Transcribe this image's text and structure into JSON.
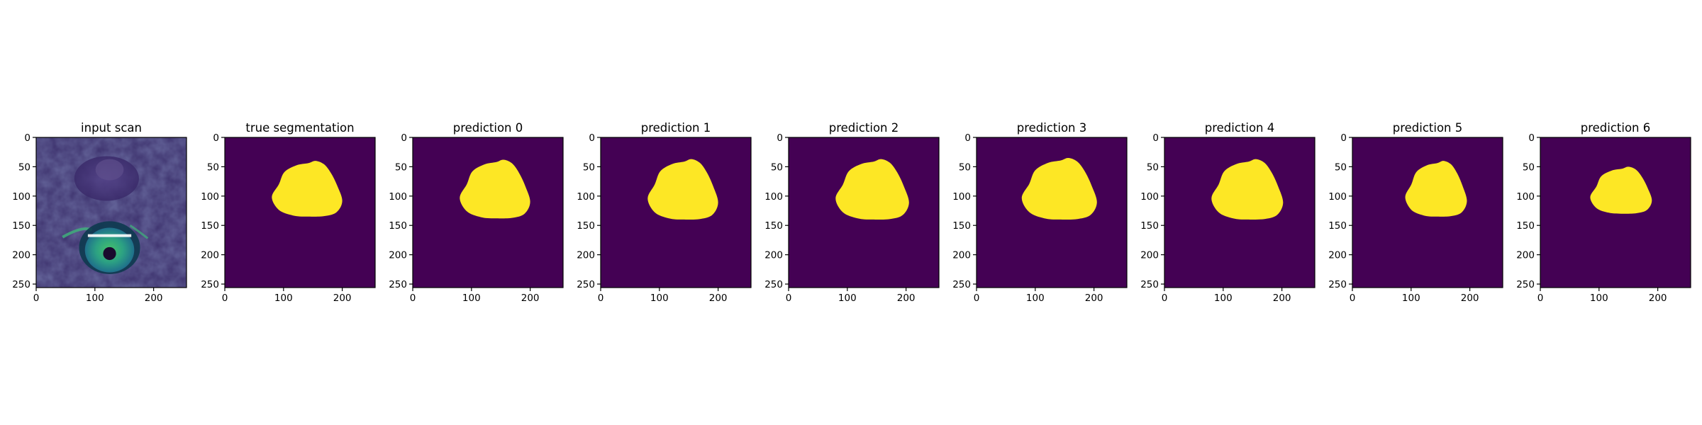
{
  "chart_data": [
    {
      "type": "heatmap",
      "image": "input-scan",
      "title": "input scan",
      "xlim": [
        0,
        256
      ],
      "ylim": [
        256,
        0
      ],
      "xticks": [
        0,
        100,
        200
      ],
      "yticks": [
        0,
        50,
        100,
        150,
        200,
        250
      ],
      "colormap": "viridis"
    },
    {
      "type": "heatmap",
      "image": "segmentation-mask",
      "title": "true segmentation",
      "xlim": [
        0,
        256
      ],
      "ylim": [
        256,
        0
      ],
      "xticks": [
        0,
        100,
        200
      ],
      "yticks": [
        0,
        50,
        100,
        150,
        200,
        250
      ],
      "mask_extent": {
        "x": [
          80,
          200
        ],
        "y": [
          40,
          135
        ]
      }
    },
    {
      "type": "heatmap",
      "image": "segmentation-mask",
      "title": "prediction 0",
      "xlim": [
        0,
        256
      ],
      "ylim": [
        256,
        0
      ],
      "xticks": [
        0,
        100,
        200
      ],
      "yticks": [
        0,
        50,
        100,
        150,
        200,
        250
      ],
      "mask_extent": {
        "x": [
          80,
          200
        ],
        "y": [
          38,
          138
        ]
      }
    },
    {
      "type": "heatmap",
      "image": "segmentation-mask",
      "title": "prediction 1",
      "xlim": [
        0,
        256
      ],
      "ylim": [
        256,
        0
      ],
      "xticks": [
        0,
        100,
        200
      ],
      "yticks": [
        0,
        50,
        100,
        150,
        200,
        250
      ],
      "mask_extent": {
        "x": [
          80,
          200
        ],
        "y": [
          37,
          140
        ]
      }
    },
    {
      "type": "heatmap",
      "image": "segmentation-mask",
      "title": "prediction 2",
      "xlim": [
        0,
        256
      ],
      "ylim": [
        256,
        0
      ],
      "xticks": [
        0,
        100,
        200
      ],
      "yticks": [
        0,
        50,
        100,
        150,
        200,
        250
      ],
      "mask_extent": {
        "x": [
          80,
          205
        ],
        "y": [
          37,
          140
        ]
      }
    },
    {
      "type": "heatmap",
      "image": "segmentation-mask",
      "title": "prediction 3",
      "xlim": [
        0,
        256
      ],
      "ylim": [
        256,
        0
      ],
      "xticks": [
        0,
        100,
        200
      ],
      "yticks": [
        0,
        50,
        100,
        150,
        200,
        250
      ],
      "mask_extent": {
        "x": [
          77,
          205
        ],
        "y": [
          35,
          140
        ]
      }
    },
    {
      "type": "heatmap",
      "image": "segmentation-mask",
      "title": "prediction 4",
      "xlim": [
        0,
        256
      ],
      "ylim": [
        256,
        0
      ],
      "xticks": [
        0,
        100,
        200
      ],
      "yticks": [
        0,
        50,
        100,
        150,
        200,
        250
      ],
      "mask_extent": {
        "x": [
          80,
          202
        ],
        "y": [
          37,
          140
        ]
      }
    },
    {
      "type": "heatmap",
      "image": "segmentation-mask",
      "title": "prediction 5",
      "xlim": [
        0,
        256
      ],
      "ylim": [
        256,
        0
      ],
      "xticks": [
        0,
        100,
        200
      ],
      "yticks": [
        0,
        50,
        100,
        150,
        200,
        250
      ],
      "mask_extent": {
        "x": [
          90,
          195
        ],
        "y": [
          40,
          135
        ]
      }
    },
    {
      "type": "heatmap",
      "image": "segmentation-mask",
      "title": "prediction 6",
      "xlim": [
        0,
        256
      ],
      "ylim": [
        256,
        0
      ],
      "xticks": [
        0,
        100,
        200
      ],
      "yticks": [
        0,
        50,
        100,
        150,
        200,
        250
      ],
      "mask_extent": {
        "x": [
          85,
          190
        ],
        "y": [
          50,
          130
        ]
      }
    }
  ],
  "colors": {
    "background_class": "#440154",
    "foreground_class": "#fde725",
    "scan_dark": "#3b2f6b",
    "scan_mid": "#2a7f8e",
    "scan_bright": "#34b679",
    "axis": "#000000"
  }
}
